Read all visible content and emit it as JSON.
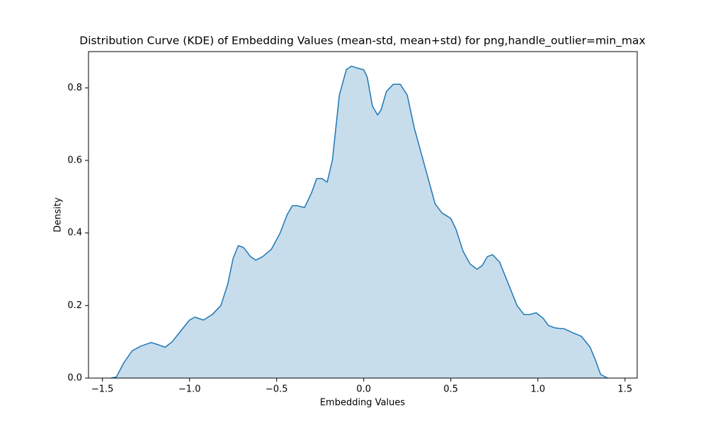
{
  "chart_data": {
    "type": "kde",
    "title": "Distribution Curve (KDE) of Embedding Values (mean-std, mean+std) for png,handle_outlier=min_max",
    "xlabel": "Embedding Values",
    "ylabel": "Density",
    "color": "#1f77b4",
    "fill_color": "rgba(31,119,180,0.25)",
    "x": [
      -1.45,
      -1.42,
      -1.38,
      -1.33,
      -1.28,
      -1.22,
      -1.18,
      -1.14,
      -1.1,
      -1.05,
      -1.0,
      -0.97,
      -0.92,
      -0.87,
      -0.82,
      -0.78,
      -0.75,
      -0.72,
      -0.69,
      -0.65,
      -0.62,
      -0.58,
      -0.53,
      -0.48,
      -0.44,
      -0.41,
      -0.38,
      -0.34,
      -0.3,
      -0.27,
      -0.24,
      -0.21,
      -0.18,
      -0.14,
      -0.1,
      -0.07,
      -0.04,
      0.0,
      0.02,
      0.05,
      0.08,
      0.1,
      0.13,
      0.17,
      0.21,
      0.25,
      0.29,
      0.33,
      0.37,
      0.41,
      0.45,
      0.5,
      0.53,
      0.57,
      0.61,
      0.65,
      0.68,
      0.71,
      0.74,
      0.78,
      0.83,
      0.88,
      0.92,
      0.95,
      0.99,
      1.03,
      1.06,
      1.1,
      1.15,
      1.2,
      1.25,
      1.3,
      1.33,
      1.36,
      1.4
    ],
    "values": [
      0,
      0.003,
      0.04,
      0.075,
      0.088,
      0.098,
      0.092,
      0.085,
      0.1,
      0.13,
      0.16,
      0.168,
      0.16,
      0.175,
      0.2,
      0.26,
      0.33,
      0.365,
      0.36,
      0.335,
      0.325,
      0.335,
      0.355,
      0.4,
      0.45,
      0.475,
      0.475,
      0.47,
      0.51,
      0.55,
      0.55,
      0.54,
      0.6,
      0.78,
      0.85,
      0.86,
      0.855,
      0.85,
      0.83,
      0.75,
      0.725,
      0.74,
      0.79,
      0.81,
      0.81,
      0.78,
      0.69,
      0.62,
      0.55,
      0.48,
      0.455,
      0.44,
      0.41,
      0.35,
      0.315,
      0.3,
      0.31,
      0.335,
      0.34,
      0.32,
      0.26,
      0.2,
      0.175,
      0.175,
      0.18,
      0.165,
      0.145,
      0.138,
      0.136,
      0.125,
      0.115,
      0.085,
      0.05,
      0.01,
      0
    ],
    "xlim": [
      -1.58,
      1.57
    ],
    "ylim": [
      0,
      0.9
    ],
    "xticks": [
      {
        "value": -1.5,
        "label": "−1.5"
      },
      {
        "value": -1.0,
        "label": "−1.0"
      },
      {
        "value": -0.5,
        "label": "−0.5"
      },
      {
        "value": 0,
        "label": "0.0"
      },
      0.5,
      {
        "value": 1,
        "label": "1.0"
      },
      1.5
    ],
    "yticks": [
      {
        "value": 0,
        "label": "0.0"
      },
      0.2,
      0.4,
      0.6,
      0.8
    ]
  }
}
